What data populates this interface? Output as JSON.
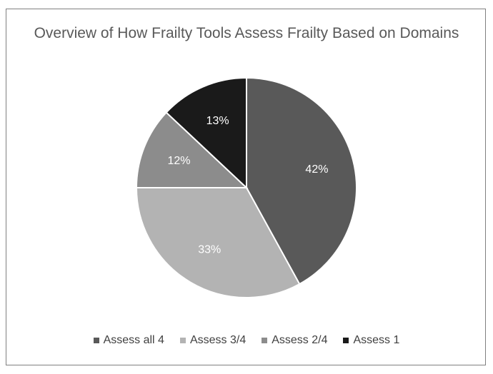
{
  "chart_data": {
    "type": "pie",
    "title": "Overview of How Frailty Tools Assess Frailty Based on Domains",
    "legend_position": "bottom",
    "slices": [
      {
        "label": "Assess all 4",
        "value": 42,
        "value_label": "42%",
        "color": "#595959",
        "text_color": "#ffffff"
      },
      {
        "label": "Assess 3/4",
        "value": 33,
        "value_label": "33%",
        "color": "#b3b3b3",
        "text_color": "#ffffff"
      },
      {
        "label": "Assess 2/4",
        "value": 12,
        "value_label": "12%",
        "color": "#8c8c8c",
        "text_color": "#ffffff"
      },
      {
        "label": "Assess 1",
        "value": 13,
        "value_label": "13%",
        "color": "#1a1a1a",
        "text_color": "#ffffff"
      }
    ]
  }
}
